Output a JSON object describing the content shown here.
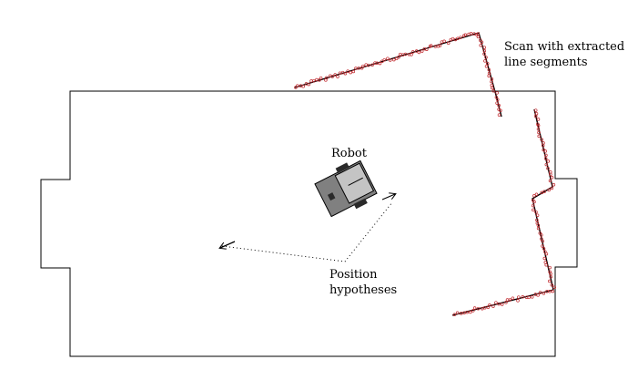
{
  "labels": {
    "scan_line1": "Scan with extracted",
    "scan_line2": "line segments",
    "robot": "Robot",
    "hypotheses_line1": "Position",
    "hypotheses_line2": "hypotheses"
  },
  "colors": {
    "map_outline": "#000000",
    "scan_points": "#c0282d",
    "scan_lines": "#000000",
    "robot_body": "#808080",
    "robot_dark": "#2a2a2a",
    "robot_light": "#c4c4c4"
  }
}
